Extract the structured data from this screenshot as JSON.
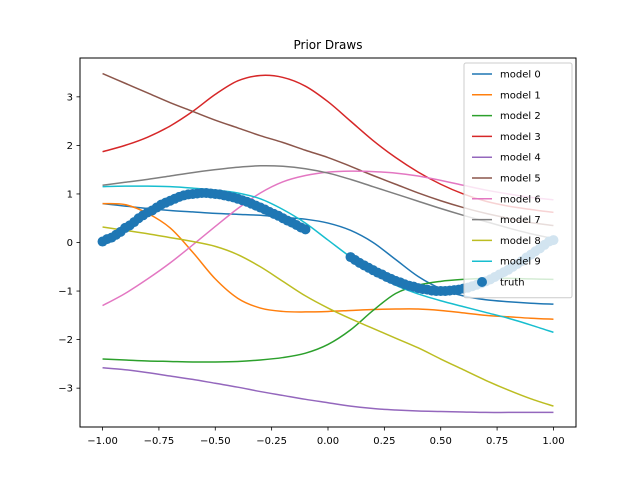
{
  "chart_data": {
    "type": "line",
    "title": "Prior Draws",
    "xlabel": "",
    "ylabel": "",
    "xlim": [
      -1.1,
      1.1
    ],
    "ylim": [
      -3.8,
      3.8
    ],
    "xticks": [
      -1.0,
      -0.75,
      -0.5,
      -0.25,
      0.0,
      0.25,
      0.5,
      0.75,
      1.0
    ],
    "xtick_labels": [
      "−1.00",
      "−0.75",
      "−0.50",
      "−0.25",
      "0.00",
      "0.25",
      "0.50",
      "0.75",
      "1.00"
    ],
    "yticks": [
      -3,
      -2,
      -1,
      0,
      1,
      2,
      3
    ],
    "ytick_labels": [
      "−3",
      "−2",
      "−1",
      "0",
      "1",
      "2",
      "3"
    ],
    "grid": false,
    "legend": "top-right",
    "x": [
      -1.0,
      -0.9,
      -0.8,
      -0.7,
      -0.6,
      -0.5,
      -0.4,
      -0.3,
      -0.2,
      -0.1,
      0.0,
      0.1,
      0.2,
      0.3,
      0.4,
      0.5,
      0.6,
      0.7,
      0.8,
      0.9,
      1.0
    ],
    "series": [
      {
        "name": "model 0",
        "color": "#1f77b4",
        "values": [
          0.8,
          0.75,
          0.7,
          0.66,
          0.63,
          0.6,
          0.58,
          0.56,
          0.52,
          0.48,
          0.4,
          0.25,
          0.0,
          -0.35,
          -0.7,
          -0.95,
          -1.1,
          -1.18,
          -1.22,
          -1.25,
          -1.27
        ]
      },
      {
        "name": "model 1",
        "color": "#ff7f0e",
        "values": [
          0.8,
          0.78,
          0.6,
          0.3,
          -0.2,
          -0.75,
          -1.15,
          -1.35,
          -1.42,
          -1.43,
          -1.42,
          -1.4,
          -1.38,
          -1.37,
          -1.37,
          -1.4,
          -1.45,
          -1.5,
          -1.53,
          -1.56,
          -1.58
        ]
      },
      {
        "name": "model 2",
        "color": "#2ca02c",
        "values": [
          -2.4,
          -2.42,
          -2.44,
          -2.45,
          -2.46,
          -2.46,
          -2.45,
          -2.42,
          -2.37,
          -2.28,
          -2.1,
          -1.8,
          -1.4,
          -1.05,
          -0.88,
          -0.8,
          -0.76,
          -0.74,
          -0.74,
          -0.75,
          -0.76
        ]
      },
      {
        "name": "model 3",
        "color": "#d62728",
        "values": [
          1.87,
          2.0,
          2.17,
          2.4,
          2.7,
          3.05,
          3.33,
          3.44,
          3.4,
          3.22,
          2.9,
          2.5,
          2.1,
          1.75,
          1.45,
          1.2,
          1.0,
          0.85,
          0.75,
          0.68,
          0.62
        ]
      },
      {
        "name": "model 4",
        "color": "#9467bd",
        "values": [
          -2.58,
          -2.62,
          -2.68,
          -2.75,
          -2.82,
          -2.9,
          -2.98,
          -3.07,
          -3.15,
          -3.23,
          -3.3,
          -3.37,
          -3.42,
          -3.45,
          -3.47,
          -3.48,
          -3.49,
          -3.5,
          -3.5,
          -3.5,
          -3.5
        ]
      },
      {
        "name": "model 5",
        "color": "#8c564b",
        "values": [
          3.48,
          3.28,
          3.08,
          2.88,
          2.7,
          2.52,
          2.36,
          2.2,
          2.06,
          1.9,
          1.75,
          1.57,
          1.38,
          1.2,
          1.02,
          0.86,
          0.72,
          0.6,
          0.5,
          0.41,
          0.35
        ]
      },
      {
        "name": "model 6",
        "color": "#e377c2",
        "values": [
          -1.3,
          -1.05,
          -0.75,
          -0.42,
          -0.05,
          0.33,
          0.7,
          1.02,
          1.25,
          1.38,
          1.45,
          1.47,
          1.46,
          1.43,
          1.37,
          1.28,
          1.18,
          1.08,
          1.0,
          0.93,
          0.88
        ]
      },
      {
        "name": "model 7",
        "color": "#7f7f7f",
        "values": [
          1.18,
          1.24,
          1.3,
          1.37,
          1.44,
          1.5,
          1.55,
          1.58,
          1.57,
          1.52,
          1.43,
          1.3,
          1.15,
          1.0,
          0.85,
          0.7,
          0.56,
          0.43,
          0.3,
          0.18,
          0.08
        ]
      },
      {
        "name": "model 8",
        "color": "#bcbd22",
        "values": [
          0.32,
          0.25,
          0.18,
          0.1,
          0.02,
          -0.08,
          -0.25,
          -0.5,
          -0.8,
          -1.1,
          -1.35,
          -1.57,
          -1.77,
          -1.97,
          -2.17,
          -2.4,
          -2.62,
          -2.84,
          -3.04,
          -3.22,
          -3.37
        ]
      },
      {
        "name": "model 9",
        "color": "#17becf",
        "values": [
          1.15,
          1.16,
          1.16,
          1.15,
          1.12,
          1.08,
          1.02,
          0.9,
          0.68,
          0.4,
          0.05,
          -0.3,
          -0.62,
          -0.88,
          -1.06,
          -1.2,
          -1.32,
          -1.44,
          -1.56,
          -1.7,
          -1.85
        ]
      }
    ],
    "truth": {
      "name": "truth",
      "color": "#1f77b4",
      "points": [
        [
          -1.0,
          0.02
        ],
        [
          -0.98,
          0.07
        ],
        [
          -0.96,
          0.1
        ],
        [
          -0.94,
          0.16
        ],
        [
          -0.92,
          0.22
        ],
        [
          -0.9,
          0.3
        ],
        [
          -0.88,
          0.35
        ],
        [
          -0.86,
          0.42
        ],
        [
          -0.84,
          0.5
        ],
        [
          -0.82,
          0.56
        ],
        [
          -0.8,
          0.62
        ],
        [
          -0.78,
          0.66
        ],
        [
          -0.76,
          0.72
        ],
        [
          -0.74,
          0.78
        ],
        [
          -0.72,
          0.82
        ],
        [
          -0.7,
          0.86
        ],
        [
          -0.68,
          0.9
        ],
        [
          -0.66,
          0.94
        ],
        [
          -0.64,
          0.97
        ],
        [
          -0.62,
          0.99
        ],
        [
          -0.6,
          1.0
        ],
        [
          -0.58,
          1.01
        ],
        [
          -0.56,
          1.02
        ],
        [
          -0.54,
          1.02
        ],
        [
          -0.52,
          1.01
        ],
        [
          -0.5,
          1.0
        ],
        [
          -0.48,
          0.99
        ],
        [
          -0.46,
          0.97
        ],
        [
          -0.44,
          0.95
        ],
        [
          -0.42,
          0.93
        ],
        [
          -0.4,
          0.9
        ],
        [
          -0.38,
          0.87
        ],
        [
          -0.36,
          0.84
        ],
        [
          -0.34,
          0.8
        ],
        [
          -0.32,
          0.76
        ],
        [
          -0.3,
          0.72
        ],
        [
          -0.28,
          0.68
        ],
        [
          -0.26,
          0.63
        ],
        [
          -0.24,
          0.59
        ],
        [
          -0.22,
          0.55
        ],
        [
          -0.2,
          0.5
        ],
        [
          -0.18,
          0.45
        ],
        [
          -0.16,
          0.41
        ],
        [
          -0.14,
          0.36
        ],
        [
          -0.12,
          0.31
        ],
        [
          -0.1,
          0.27
        ],
        [
          0.1,
          -0.3
        ],
        [
          0.12,
          -0.36
        ],
        [
          0.14,
          -0.42
        ],
        [
          0.16,
          -0.47
        ],
        [
          0.18,
          -0.52
        ],
        [
          0.2,
          -0.57
        ],
        [
          0.22,
          -0.62
        ],
        [
          0.24,
          -0.66
        ],
        [
          0.26,
          -0.71
        ],
        [
          0.28,
          -0.75
        ],
        [
          0.3,
          -0.79
        ],
        [
          0.32,
          -0.82
        ],
        [
          0.34,
          -0.86
        ],
        [
          0.36,
          -0.89
        ],
        [
          0.38,
          -0.91
        ],
        [
          0.4,
          -0.94
        ],
        [
          0.42,
          -0.96
        ],
        [
          0.44,
          -0.97
        ],
        [
          0.46,
          -0.99
        ],
        [
          0.48,
          -1.0
        ],
        [
          0.5,
          -1.0
        ],
        [
          0.52,
          -1.0
        ],
        [
          0.54,
          -0.99
        ],
        [
          0.56,
          -0.98
        ],
        [
          0.58,
          -0.97
        ],
        [
          0.6,
          -0.95
        ],
        [
          0.62,
          -0.93
        ],
        [
          0.64,
          -0.9
        ],
        [
          0.66,
          -0.87
        ],
        [
          0.68,
          -0.84
        ],
        [
          0.7,
          -0.8
        ],
        [
          0.72,
          -0.76
        ],
        [
          0.74,
          -0.71
        ],
        [
          0.76,
          -0.66
        ],
        [
          0.78,
          -0.61
        ],
        [
          0.8,
          -0.56
        ],
        [
          0.82,
          -0.5
        ],
        [
          0.84,
          -0.44
        ],
        [
          0.86,
          -0.38
        ],
        [
          0.88,
          -0.31
        ],
        [
          0.9,
          -0.25
        ],
        [
          0.92,
          -0.18
        ],
        [
          0.94,
          -0.12
        ],
        [
          0.96,
          -0.05
        ],
        [
          0.98,
          0.02
        ],
        [
          1.0,
          0.05
        ]
      ]
    }
  }
}
